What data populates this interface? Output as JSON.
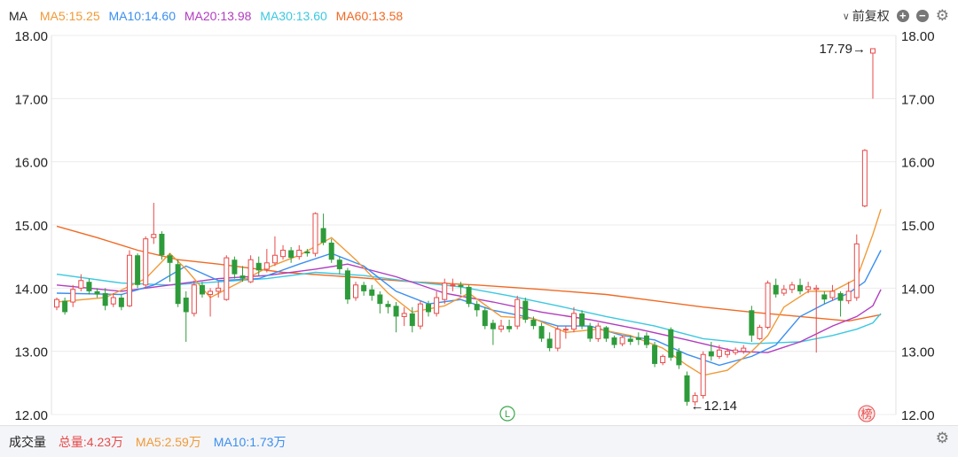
{
  "header": {
    "indicator": "MA",
    "ma_labels": [
      {
        "text": "MA5:15.25",
        "color": "#f09a37"
      },
      {
        "text": "MA10:14.60",
        "color": "#3b8ff0"
      },
      {
        "text": "MA20:13.98",
        "color": "#b13cc0"
      },
      {
        "text": "MA30:13.60",
        "color": "#3cc8e0"
      },
      {
        "text": "MA60:13.58",
        "color": "#f06a24"
      }
    ],
    "fq_label": "前复权",
    "zoom_in_icon": "plus-circle-icon",
    "zoom_out_icon": "minus-circle-icon",
    "settings_icon": "gear-icon"
  },
  "chart_data": {
    "type": "candlestick",
    "ylim": [
      12.0,
      18.0
    ],
    "y_ticks": [
      "18.00",
      "17.00",
      "16.00",
      "15.00",
      "14.00",
      "13.00",
      "12.00"
    ],
    "grid": true,
    "colors": {
      "up": "#e84a4a",
      "down": "#2e9b3b",
      "ma5": "#f09a37",
      "ma10": "#3b8ff0",
      "ma20": "#b13cc0",
      "ma30": "#3cc8e0",
      "ma60": "#f06a24"
    },
    "candles": [
      [
        13.7,
        13.82,
        13.85,
        13.65
      ],
      [
        13.8,
        13.62,
        13.85,
        13.58
      ],
      [
        13.78,
        13.98,
        14.05,
        13.7
      ],
      [
        14.0,
        14.12,
        14.22,
        13.95
      ],
      [
        14.1,
        13.95,
        14.15,
        13.9
      ],
      [
        13.95,
        13.9,
        14.0,
        13.85
      ],
      [
        13.92,
        13.72,
        14.0,
        13.65
      ],
      [
        13.75,
        13.85,
        13.92,
        13.7
      ],
      [
        13.85,
        13.7,
        13.9,
        13.65
      ],
      [
        13.72,
        14.52,
        14.6,
        13.7
      ],
      [
        14.52,
        14.05,
        14.55,
        14.0
      ],
      [
        14.05,
        14.78,
        14.82,
        14.0
      ],
      [
        14.8,
        14.85,
        15.35,
        14.7
      ],
      [
        14.86,
        14.52,
        14.9,
        14.45
      ],
      [
        14.52,
        14.4,
        14.55,
        14.1
      ],
      [
        14.38,
        13.75,
        14.45,
        13.7
      ],
      [
        13.85,
        13.62,
        13.95,
        13.15
      ],
      [
        13.6,
        14.05,
        14.12,
        13.55
      ],
      [
        14.05,
        13.9,
        14.1,
        13.85
      ],
      [
        13.9,
        13.95,
        14.0,
        13.55
      ],
      [
        13.95,
        14.0,
        14.1,
        13.85
      ],
      [
        13.82,
        14.48,
        14.52,
        13.8
      ],
      [
        14.45,
        14.22,
        14.5,
        14.15
      ],
      [
        14.2,
        14.15,
        14.35,
        14.1
      ],
      [
        14.1,
        14.45,
        14.52,
        14.08
      ],
      [
        14.4,
        14.28,
        14.5,
        14.2
      ],
      [
        14.3,
        14.4,
        14.62,
        14.25
      ],
      [
        14.4,
        14.52,
        14.82,
        14.35
      ],
      [
        14.5,
        14.6,
        14.68,
        14.45
      ],
      [
        14.6,
        14.48,
        14.65,
        14.4
      ],
      [
        14.5,
        14.6,
        14.68,
        14.45
      ],
      [
        14.58,
        14.55,
        14.62,
        14.5
      ],
      [
        14.55,
        15.18,
        15.2,
        14.5
      ],
      [
        14.95,
        14.72,
        15.18,
        14.68
      ],
      [
        14.72,
        14.45,
        14.78,
        14.4
      ],
      [
        14.45,
        14.3,
        14.5,
        14.22
      ],
      [
        14.28,
        13.82,
        14.32,
        13.75
      ],
      [
        13.85,
        14.05,
        14.1,
        13.8
      ],
      [
        14.05,
        13.95,
        14.1,
        13.88
      ],
      [
        13.98,
        13.88,
        14.05,
        13.8
      ],
      [
        13.9,
        13.75,
        13.95,
        13.6
      ],
      [
        13.75,
        13.7,
        13.8,
        13.6
      ],
      [
        13.72,
        13.55,
        13.78,
        13.3
      ],
      [
        13.55,
        13.6,
        13.7,
        13.4
      ],
      [
        13.6,
        13.4,
        13.7,
        13.3
      ],
      [
        13.4,
        13.75,
        13.8,
        13.35
      ],
      [
        13.75,
        13.62,
        13.8,
        13.55
      ],
      [
        13.6,
        13.85,
        13.95,
        13.55
      ],
      [
        13.82,
        14.08,
        14.15,
        13.75
      ],
      [
        14.05,
        14.05,
        14.15,
        13.95
      ],
      [
        14.05,
        14.02,
        14.1,
        13.9
      ],
      [
        14.02,
        13.75,
        14.05,
        13.7
      ],
      [
        13.75,
        13.65,
        13.8,
        13.55
      ],
      [
        13.65,
        13.4,
        13.7,
        13.35
      ],
      [
        13.45,
        13.35,
        13.5,
        13.1
      ],
      [
        13.35,
        13.4,
        13.5,
        13.3
      ],
      [
        13.4,
        13.35,
        13.5,
        13.3
      ],
      [
        13.4,
        13.82,
        13.88,
        13.35
      ],
      [
        13.8,
        13.5,
        13.85,
        13.45
      ],
      [
        13.5,
        13.4,
        13.55,
        13.35
      ],
      [
        13.4,
        13.2,
        13.45,
        13.15
      ],
      [
        13.2,
        13.05,
        13.3,
        13.0
      ],
      [
        13.05,
        13.35,
        13.4,
        13.0
      ],
      [
        13.35,
        13.35,
        13.4,
        13.2
      ],
      [
        13.35,
        13.6,
        13.7,
        13.3
      ],
      [
        13.6,
        13.4,
        13.65,
        13.35
      ],
      [
        13.4,
        13.2,
        13.45,
        13.15
      ],
      [
        13.2,
        13.4,
        13.45,
        13.15
      ],
      [
        13.38,
        13.2,
        13.4,
        13.15
      ],
      [
        13.22,
        13.1,
        13.25,
        13.05
      ],
      [
        13.12,
        13.22,
        13.25,
        13.08
      ],
      [
        13.2,
        13.15,
        13.25,
        13.1
      ],
      [
        13.22,
        13.18,
        13.3,
        13.1
      ],
      [
        13.25,
        13.1,
        13.3,
        13.05
      ],
      [
        13.1,
        12.8,
        13.15,
        12.75
      ],
      [
        12.82,
        12.92,
        12.95,
        12.78
      ],
      [
        13.35,
        12.9,
        13.38,
        12.85
      ],
      [
        13.0,
        12.78,
        13.05,
        12.72
      ],
      [
        12.62,
        12.2,
        12.68,
        12.14
      ],
      [
        12.2,
        12.3,
        12.35,
        12.14
      ],
      [
        12.3,
        12.95,
        13.0,
        12.25
      ],
      [
        13.0,
        12.92,
        13.15,
        12.85
      ],
      [
        12.92,
        13.02,
        13.1,
        12.88
      ],
      [
        12.95,
        13.0,
        13.05,
        12.9
      ],
      [
        12.98,
        13.02,
        13.06,
        12.94
      ],
      [
        13.0,
        13.05,
        13.1,
        12.96
      ],
      [
        13.65,
        13.25,
        13.72,
        13.15
      ],
      [
        13.2,
        13.38,
        13.42,
        13.18
      ],
      [
        13.38,
        14.08,
        14.12,
        13.35
      ],
      [
        14.05,
        13.9,
        14.15,
        13.85
      ],
      [
        13.92,
        13.98,
        14.05,
        13.88
      ],
      [
        13.98,
        14.05,
        14.1,
        13.92
      ],
      [
        14.05,
        13.95,
        14.15,
        13.9
      ],
      [
        13.98,
        14.02,
        14.1,
        13.92
      ],
      [
        13.98,
        14.0,
        14.05,
        12.98
      ],
      [
        13.9,
        13.82,
        13.95,
        13.75
      ],
      [
        13.85,
        13.95,
        14.05,
        13.8
      ],
      [
        13.92,
        13.8,
        13.95,
        13.55
      ],
      [
        13.8,
        13.95,
        14.1,
        13.75
      ],
      [
        13.85,
        14.7,
        14.85,
        13.8
      ],
      [
        15.3,
        16.18,
        16.2,
        15.28
      ],
      [
        17.72,
        17.79,
        17.79,
        17.0
      ]
    ],
    "ma_series": {
      "ma5": [
        [
          0,
          13.78
        ],
        [
          6,
          13.85
        ],
        [
          11,
          14.15
        ],
        [
          14,
          14.55
        ],
        [
          16,
          14.3
        ],
        [
          19,
          13.85
        ],
        [
          22,
          14.05
        ],
        [
          26,
          14.32
        ],
        [
          30,
          14.52
        ],
        [
          34,
          14.8
        ],
        [
          37,
          14.45
        ],
        [
          41,
          13.92
        ],
        [
          44,
          13.62
        ],
        [
          48,
          13.72
        ],
        [
          51,
          13.92
        ],
        [
          55,
          13.55
        ],
        [
          59,
          13.52
        ],
        [
          63,
          13.3
        ],
        [
          67,
          13.35
        ],
        [
          71,
          13.25
        ],
        [
          75,
          13.05
        ],
        [
          78,
          12.78
        ],
        [
          80,
          12.62
        ],
        [
          83,
          12.7
        ],
        [
          86,
          13.0
        ],
        [
          88,
          13.25
        ],
        [
          90,
          13.7
        ],
        [
          93,
          13.95
        ],
        [
          96,
          13.95
        ],
        [
          99,
          14.15
        ],
        [
          101,
          14.85
        ],
        [
          102,
          15.25
        ]
      ],
      "ma10": [
        [
          0,
          13.92
        ],
        [
          8,
          13.9
        ],
        [
          12,
          14.05
        ],
        [
          16,
          14.35
        ],
        [
          20,
          14.12
        ],
        [
          25,
          14.15
        ],
        [
          30,
          14.38
        ],
        [
          34,
          14.55
        ],
        [
          38,
          14.35
        ],
        [
          42,
          13.95
        ],
        [
          46,
          13.75
        ],
        [
          50,
          13.82
        ],
        [
          54,
          13.65
        ],
        [
          58,
          13.55
        ],
        [
          62,
          13.4
        ],
        [
          66,
          13.4
        ],
        [
          70,
          13.25
        ],
        [
          74,
          13.18
        ],
        [
          78,
          12.95
        ],
        [
          82,
          12.78
        ],
        [
          86,
          12.92
        ],
        [
          89,
          13.1
        ],
        [
          92,
          13.55
        ],
        [
          95,
          13.75
        ],
        [
          98,
          13.92
        ],
        [
          100,
          14.1
        ],
        [
          102,
          14.6
        ]
      ],
      "ma20": [
        [
          0,
          14.05
        ],
        [
          8,
          13.95
        ],
        [
          14,
          14.05
        ],
        [
          20,
          14.15
        ],
        [
          26,
          14.2
        ],
        [
          32,
          14.3
        ],
        [
          36,
          14.38
        ],
        [
          42,
          14.18
        ],
        [
          48,
          13.92
        ],
        [
          54,
          13.78
        ],
        [
          60,
          13.62
        ],
        [
          66,
          13.5
        ],
        [
          72,
          13.35
        ],
        [
          78,
          13.18
        ],
        [
          84,
          13.0
        ],
        [
          88,
          12.98
        ],
        [
          92,
          13.15
        ],
        [
          96,
          13.4
        ],
        [
          99,
          13.55
        ],
        [
          101,
          13.72
        ],
        [
          102,
          13.98
        ]
      ],
      "ma30": [
        [
          0,
          14.22
        ],
        [
          8,
          14.08
        ],
        [
          14,
          14.05
        ],
        [
          20,
          14.1
        ],
        [
          26,
          14.15
        ],
        [
          32,
          14.25
        ],
        [
          38,
          14.2
        ],
        [
          44,
          14.1
        ],
        [
          50,
          14.02
        ],
        [
          56,
          13.88
        ],
        [
          62,
          13.72
        ],
        [
          68,
          13.55
        ],
        [
          74,
          13.4
        ],
        [
          80,
          13.2
        ],
        [
          86,
          13.12
        ],
        [
          92,
          13.15
        ],
        [
          96,
          13.25
        ],
        [
          99,
          13.35
        ],
        [
          101,
          13.45
        ],
        [
          102,
          13.6
        ]
      ],
      "ma60": [
        [
          0,
          14.98
        ],
        [
          5,
          14.8
        ],
        [
          10,
          14.6
        ],
        [
          15,
          14.45
        ],
        [
          20,
          14.38
        ],
        [
          28,
          14.25
        ],
        [
          36,
          14.18
        ],
        [
          44,
          14.1
        ],
        [
          52,
          14.05
        ],
        [
          60,
          13.98
        ],
        [
          68,
          13.9
        ],
        [
          74,
          13.8
        ],
        [
          80,
          13.7
        ],
        [
          86,
          13.62
        ],
        [
          92,
          13.55
        ],
        [
          98,
          13.48
        ],
        [
          102,
          13.58
        ]
      ]
    },
    "annotations": {
      "high": "17.79→",
      "low": "←12.14"
    },
    "markers": {
      "l": "L",
      "bang": "榜"
    }
  },
  "volume_bar": {
    "label": "成交量",
    "items": [
      {
        "text": "总量:4.23万",
        "color": "#e84a4a"
      },
      {
        "text": "MA5:2.59万",
        "color": "#f09a37"
      },
      {
        "text": "MA10:1.73万",
        "color": "#3b8ff0"
      }
    ],
    "settings_icon": "gear-icon"
  }
}
